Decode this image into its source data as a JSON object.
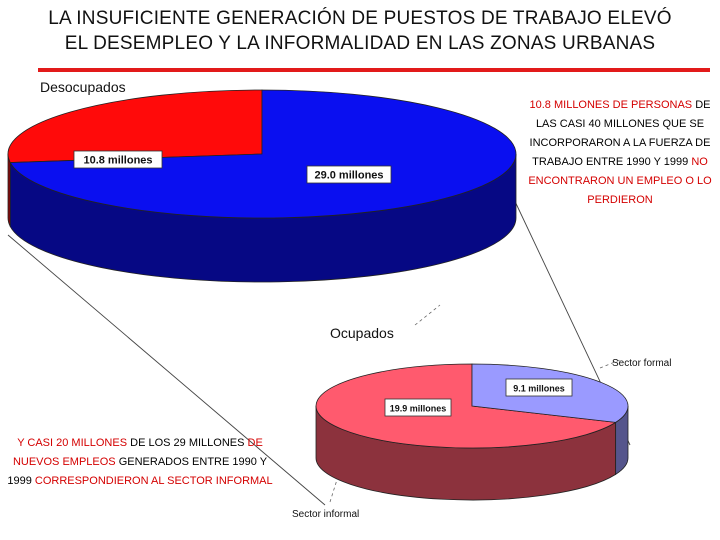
{
  "title": {
    "line1": "LA INSUFICIENTE GENERACIÓN DE PUESTOS DE TRABAJO ELEVÓ",
    "line2": "EL DESEMPLEO Y LA INFORMALIDAD EN LAS ZONAS URBANAS"
  },
  "colors": {
    "accent_rule": "#e21a1a",
    "highlight_text": "#d40000",
    "ocupados": "#0a0ff0",
    "desocupados": "#ff0a0a",
    "sector_informal": "#ff5a6e",
    "sector_formal": "#9a9aff"
  },
  "chart_data": [
    {
      "type": "pie",
      "title": "",
      "slices": [
        {
          "label": "Desocupados",
          "value": 10.8,
          "value_label": "10.8 millones"
        },
        {
          "label": "Ocupados",
          "value": 29.0,
          "value_label": "29.0 millones"
        }
      ],
      "unit": "millones"
    },
    {
      "type": "pie",
      "title": "",
      "slices": [
        {
          "label": "Sector informal",
          "value": 19.9,
          "value_label": "19.9 millones"
        },
        {
          "label": "Sector formal",
          "value": 9.1,
          "value_label": "9.1 millones"
        }
      ],
      "unit": "millones"
    }
  ],
  "notes": {
    "right": {
      "p1": "10.8 MILLONES DE PERSONAS",
      "p2": " DE LAS CASI 40 MILLONES QUE SE INCORPORARON A LA FUERZA DE TRABAJO ENTRE 1990 Y 1999 ",
      "p3": "NO ENCONTRARON UN EMPLEO O LO PERDIERON"
    },
    "left": {
      "p1": "Y CASI 20 MILLONES",
      "p2": " DE LOS 29 MILLONES ",
      "p3": "DE NUEVOS EMPLEOS",
      "p4": " GENERADOS ENTRE 1990 Y 1999 ",
      "p5": "CORRESPONDIERON AL SECTOR INFORMAL"
    }
  }
}
